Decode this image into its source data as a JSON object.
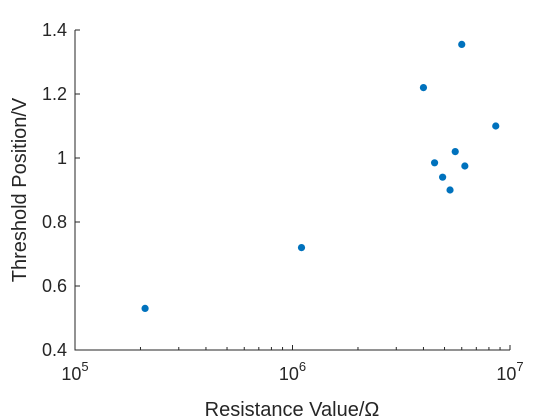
{
  "chart_data": {
    "type": "scatter",
    "title": "",
    "xlabel": "Resistance Value/Ω",
    "ylabel": "Threshold Position/V",
    "x_scale": "log",
    "xlim": [
      100000,
      10000000
    ],
    "ylim": [
      0.4,
      1.4
    ],
    "x_ticks": [
      {
        "value": 100000,
        "base": "10",
        "exp": "5"
      },
      {
        "value": 1000000,
        "base": "10",
        "exp": "6"
      },
      {
        "value": 10000000,
        "base": "10",
        "exp": "7"
      }
    ],
    "y_ticks": [
      {
        "value": 0.4,
        "label": "0.4"
      },
      {
        "value": 0.6,
        "label": "0.6"
      },
      {
        "value": 0.8,
        "label": "0.8"
      },
      {
        "value": 1.0,
        "label": "1"
      },
      {
        "value": 1.2,
        "label": "1.2"
      },
      {
        "value": 1.4,
        "label": "1.4"
      }
    ],
    "grid": false,
    "legend": "none",
    "marker_color": "#0072BD",
    "points": [
      {
        "x": 210000,
        "y": 0.53
      },
      {
        "x": 1100000,
        "y": 0.72
      },
      {
        "x": 4000000,
        "y": 1.22
      },
      {
        "x": 4500000,
        "y": 0.985
      },
      {
        "x": 4900000,
        "y": 0.94
      },
      {
        "x": 5300000,
        "y": 0.9
      },
      {
        "x": 5600000,
        "y": 1.02
      },
      {
        "x": 6000000,
        "y": 1.355
      },
      {
        "x": 6200000,
        "y": 0.975
      },
      {
        "x": 8600000,
        "y": 1.1
      }
    ]
  }
}
